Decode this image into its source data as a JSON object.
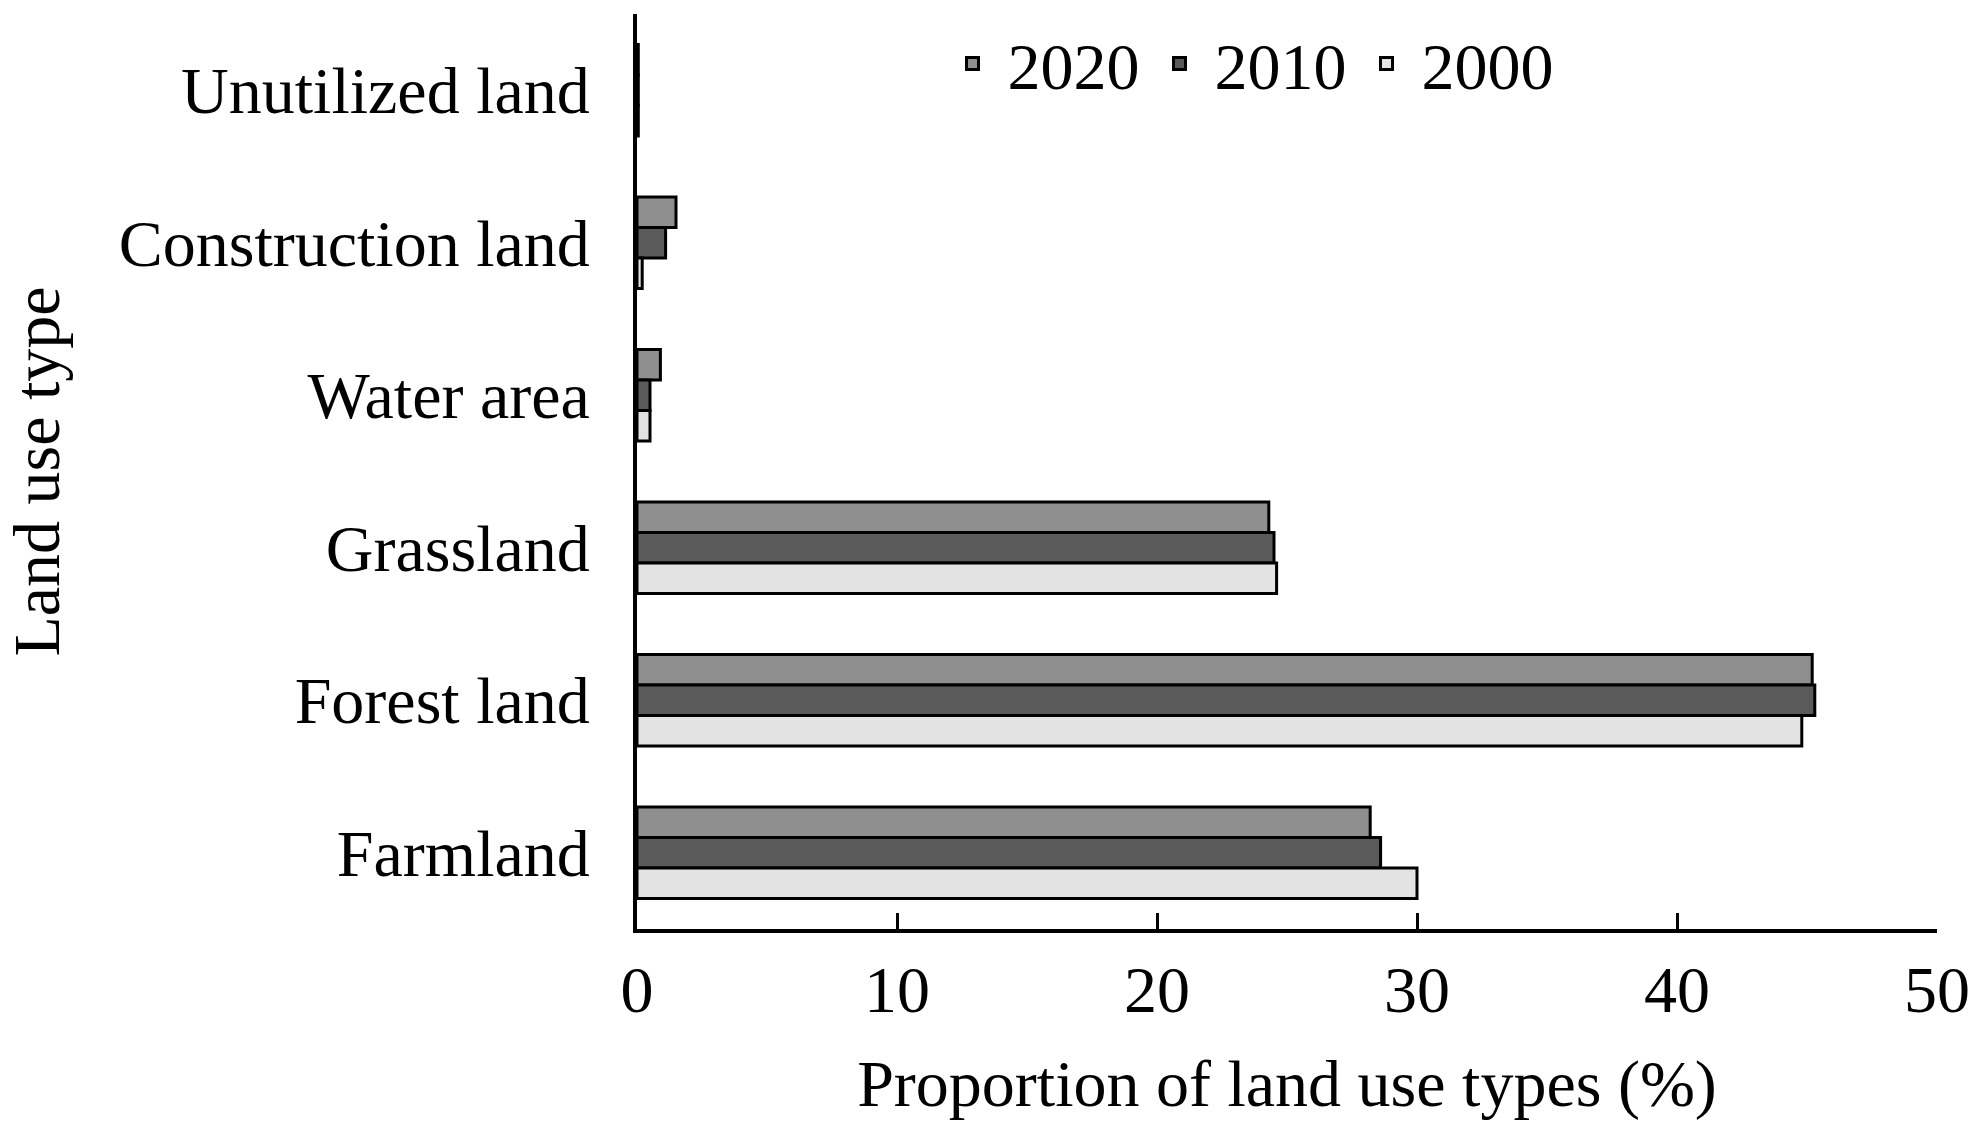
{
  "chart_data": {
    "type": "bar",
    "orientation": "horizontal",
    "xlabel": "Proportion of land use types (%)",
    "ylabel": "Land use type",
    "categories": [
      "Unutilized land",
      "Construction land",
      "Water area",
      "Grassland",
      "Forest land",
      "Farmland"
    ],
    "series": [
      {
        "name": "2020",
        "color": "#8f8f8f",
        "values": [
          0.05,
          1.5,
          0.9,
          24.3,
          45.2,
          28.2
        ]
      },
      {
        "name": "2010",
        "color": "#5a5a5a",
        "values": [
          0.05,
          1.1,
          0.5,
          24.5,
          45.3,
          28.6
        ]
      },
      {
        "name": "2000",
        "color": "#e3e3e3",
        "values": [
          0.05,
          0.2,
          0.5,
          24.6,
          44.8,
          30.0
        ]
      }
    ],
    "xlim": [
      0,
      50
    ],
    "xticks": [
      0,
      10,
      20,
      30,
      40,
      50
    ],
    "grid": false,
    "legend": "top"
  }
}
